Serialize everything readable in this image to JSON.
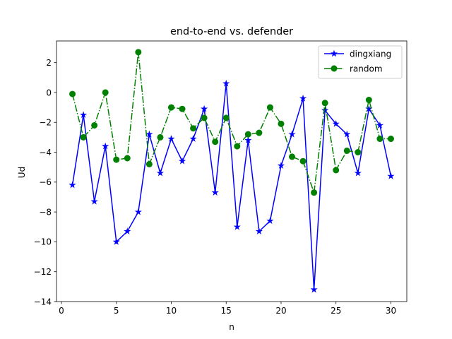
{
  "chart_data": {
    "type": "line",
    "title": "end-to-end vs. defender",
    "xlabel": "n",
    "ylabel": "Ud",
    "xlim": [
      -0.45,
      31.45
    ],
    "ylim": [
      -14.0,
      3.45
    ],
    "xticks": [
      0,
      5,
      10,
      15,
      20,
      25,
      30
    ],
    "yticks": [
      2,
      0,
      -2,
      -4,
      -6,
      -8,
      -10,
      -12,
      -14
    ],
    "grid": false,
    "legend_position": "top-right",
    "x": [
      1,
      2,
      3,
      4,
      5,
      6,
      7,
      8,
      9,
      10,
      11,
      12,
      13,
      14,
      15,
      16,
      17,
      18,
      19,
      20,
      21,
      22,
      23,
      24,
      25,
      26,
      27,
      28,
      29,
      30
    ],
    "series": [
      {
        "name": "dingxiang",
        "color": "#0000ff",
        "linestyle": "solid",
        "marker": "star",
        "values": [
          -6.2,
          -1.5,
          -7.3,
          -3.6,
          -10.0,
          -9.3,
          -8.0,
          -2.8,
          -5.4,
          -3.1,
          -4.6,
          -3.1,
          -1.1,
          -6.7,
          0.6,
          -9.0,
          -3.2,
          -9.3,
          -8.6,
          -4.9,
          -2.8,
          -0.4,
          -13.2,
          -1.2,
          -2.1,
          -2.8,
          -5.4,
          -1.1,
          -2.2,
          -5.6
        ]
      },
      {
        "name": "random",
        "color": "#008000",
        "linestyle": "dashdot",
        "marker": "circle",
        "values": [
          -0.1,
          -3.0,
          -2.2,
          0.0,
          -4.5,
          -4.4,
          2.7,
          -4.8,
          -3.0,
          -1.0,
          -1.1,
          -2.4,
          -1.7,
          -3.3,
          -1.7,
          -3.6,
          -2.8,
          -2.7,
          -1.0,
          -2.1,
          -4.3,
          -4.6,
          -6.7,
          -0.7,
          -5.2,
          -3.9,
          -4.0,
          -0.5,
          -3.1,
          -3.1
        ]
      }
    ]
  }
}
